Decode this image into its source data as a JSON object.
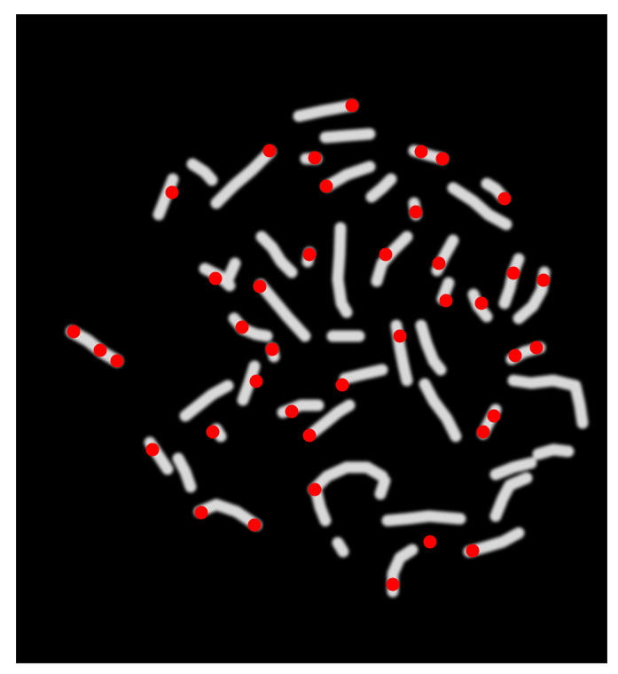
{
  "figure": {
    "background_color": "#000000",
    "chromosome_color": "#d9d9d9",
    "marker_color": "#ff0000",
    "description_kind": "metaphase chromosome spread with red centromere markers"
  }
}
